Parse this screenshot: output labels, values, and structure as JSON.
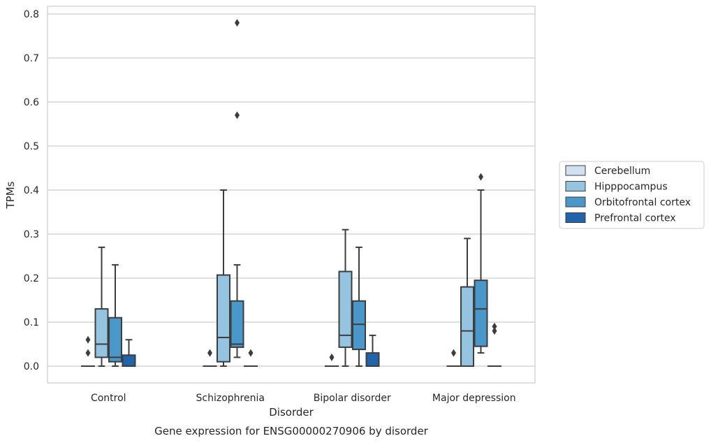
{
  "chart_data": {
    "type": "box",
    "title": "",
    "caption": "Gene expression for ENSG00000270906 by disorder",
    "xlabel": "Disorder",
    "ylabel": "TPMs",
    "ylim": [
      -0.04,
      0.82
    ],
    "yticks": [
      "0.0",
      "0.1",
      "0.2",
      "0.3",
      "0.4",
      "0.5",
      "0.6",
      "0.7",
      "0.8"
    ],
    "grid": "horizontal",
    "legend_position": "right",
    "categories": [
      "Control",
      "Schizophrenia",
      "Bipolar disorder",
      "Major depression"
    ],
    "series": [
      {
        "name": "Cerebellum",
        "color": "#d0e1f2",
        "boxes": [
          {
            "q1": 0,
            "median": 0,
            "q3": 0,
            "whisker_low": 0,
            "whisker_high": 0,
            "outliers": [
              0.03,
              0.06
            ]
          },
          {
            "q1": 0,
            "median": 0,
            "q3": 0,
            "whisker_low": 0,
            "whisker_high": 0,
            "outliers": [
              0.03
            ]
          },
          {
            "q1": 0,
            "median": 0,
            "q3": 0,
            "whisker_low": 0,
            "whisker_high": 0,
            "outliers": [
              0.02
            ]
          },
          {
            "q1": 0,
            "median": 0,
            "q3": 0,
            "whisker_low": 0,
            "whisker_high": 0,
            "outliers": [
              0.03
            ]
          }
        ]
      },
      {
        "name": "Hipppocampus",
        "color": "#94c4df",
        "boxes": [
          {
            "q1": 0.02,
            "median": 0.05,
            "q3": 0.13,
            "whisker_low": 0,
            "whisker_high": 0.27,
            "outliers": []
          },
          {
            "q1": 0.01,
            "median": 0.065,
            "q3": 0.207,
            "whisker_low": 0,
            "whisker_high": 0.4,
            "outliers": []
          },
          {
            "q1": 0.043,
            "median": 0.07,
            "q3": 0.215,
            "whisker_low": 0,
            "whisker_high": 0.31,
            "outliers": []
          },
          {
            "q1": 0,
            "median": 0.08,
            "q3": 0.18,
            "whisker_low": 0,
            "whisker_high": 0.29,
            "outliers": []
          }
        ]
      },
      {
        "name": "Orbitofrontal cortex",
        "color": "#4a98c9",
        "boxes": [
          {
            "q1": 0.01,
            "median": 0.02,
            "q3": 0.11,
            "whisker_low": 0,
            "whisker_high": 0.23,
            "outliers": []
          },
          {
            "q1": 0.043,
            "median": 0.05,
            "q3": 0.148,
            "whisker_low": 0.02,
            "whisker_high": 0.23,
            "outliers": [
              0.57,
              0.78
            ]
          },
          {
            "q1": 0.038,
            "median": 0.095,
            "q3": 0.148,
            "whisker_low": 0,
            "whisker_high": 0.27,
            "outliers": []
          },
          {
            "q1": 0.045,
            "median": 0.13,
            "q3": 0.195,
            "whisker_low": 0.03,
            "whisker_high": 0.4,
            "outliers": [
              0.43
            ]
          }
        ]
      },
      {
        "name": "Prefrontal cortex",
        "color": "#2164ab",
        "boxes": [
          {
            "q1": 0,
            "median": 0,
            "q3": 0.025,
            "whisker_low": 0,
            "whisker_high": 0.06,
            "outliers": []
          },
          {
            "q1": 0,
            "median": 0,
            "q3": 0,
            "whisker_low": 0,
            "whisker_high": 0,
            "outliers": [
              0.03
            ]
          },
          {
            "q1": 0,
            "median": 0,
            "q3": 0.03,
            "whisker_low": 0,
            "whisker_high": 0.07,
            "outliers": []
          },
          {
            "q1": 0,
            "median": 0,
            "q3": 0,
            "whisker_low": 0,
            "whisker_high": 0,
            "outliers": [
              0.08,
              0.09
            ]
          }
        ]
      }
    ]
  }
}
